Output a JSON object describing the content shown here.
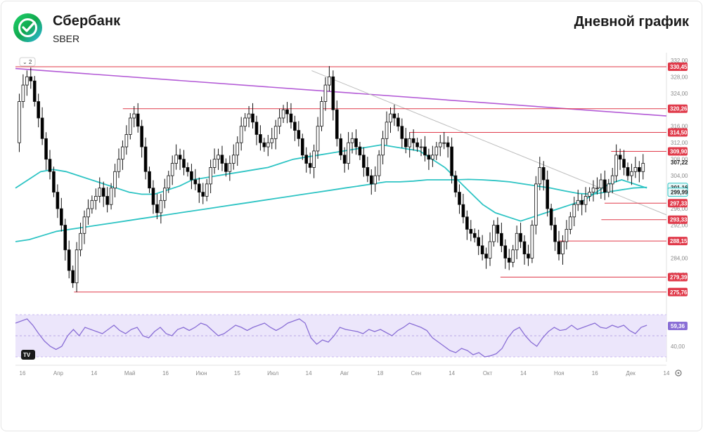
{
  "header": {
    "company_name": "Сбербанк",
    "ticker": "SBER",
    "chart_title": "Дневной график",
    "logo_icon": "sber-logo-icon"
  },
  "toolbar": {
    "collapse_label": "2",
    "tv_badge": "TV"
  },
  "colors": {
    "up": "#ffffff",
    "down": "#000000",
    "sma_short": "#2ec4c4",
    "sma_long": "#2ec4c4",
    "trend_purple": "#b35ad6",
    "trend_gray": "#bdbdbd",
    "level_red": "#e03a4a",
    "rsi_line": "#8a6fd6",
    "rsi_band": "#ece6fb",
    "price_tag_black": "#1a1a1a"
  },
  "chart_data": {
    "type": "candlestick",
    "y_axis": {
      "min": 273,
      "max": 333,
      "ticks": [
        "332,00",
        "328,00",
        "324,00",
        "316,00",
        "312,00",
        "308,00",
        "304,00",
        "296,00",
        "292,00",
        "284,00",
        "280,00"
      ]
    },
    "x_axis": {
      "labels": [
        "16",
        "Апр",
        "14",
        "Май",
        "16",
        "Июн",
        "15",
        "Июл",
        "14",
        "Авг",
        "18",
        "Сен",
        "14",
        "Окт",
        "14",
        "Ноя",
        "16",
        "Дек",
        "14"
      ]
    },
    "levels": [
      {
        "value": 330.45,
        "label": "330,45",
        "from": 0.0
      },
      {
        "value": 320.26,
        "label": "320,26",
        "from": 0.165
      },
      {
        "value": 314.5,
        "label": "314,50",
        "from": 0.605
      },
      {
        "value": 309.9,
        "label": "309,90",
        "from": 0.915
      },
      {
        "value": 297.33,
        "label": "297,33",
        "from": 0.905
      },
      {
        "value": 293.33,
        "label": "293,33",
        "from": 0.9
      },
      {
        "value": 288.15,
        "label": "288,15",
        "from": 0.835
      },
      {
        "value": 279.39,
        "label": "279,39",
        "from": 0.745
      },
      {
        "value": 275.76,
        "label": "275,76",
        "from": 0.09
      }
    ],
    "price_tags": [
      {
        "value": 307.22,
        "label": "307,22",
        "style": "plain"
      },
      {
        "value": 301.16,
        "label": "301,16",
        "style": "teal"
      },
      {
        "value": 299.99,
        "label": "299,99",
        "style": "teal"
      }
    ],
    "trendlines": [
      {
        "name": "purple",
        "from": [
          0.0,
          330.0
        ],
        "to": [
          1.0,
          318.5
        ]
      },
      {
        "name": "gray",
        "from": [
          0.455,
          329.5
        ],
        "to": [
          1.0,
          294.5
        ]
      }
    ],
    "closes": [
      312,
      322,
      326,
      328,
      327,
      322,
      318,
      313,
      308,
      305,
      300,
      296,
      292,
      286,
      281,
      278,
      286,
      290,
      294,
      296,
      298,
      299,
      301,
      299,
      297,
      301,
      305,
      308,
      311,
      314,
      318,
      319,
      316,
      311,
      305,
      301,
      297,
      295,
      298,
      301,
      304,
      307,
      309,
      308,
      306,
      305,
      303,
      302,
      300,
      299,
      302,
      306,
      308,
      309,
      307,
      305,
      307,
      309,
      312,
      316,
      318,
      319,
      317,
      314,
      312,
      311,
      312,
      313,
      316,
      318,
      320,
      319,
      317,
      315,
      313,
      309,
      307,
      306,
      310,
      316,
      322,
      326,
      328,
      320,
      313,
      309,
      307,
      312,
      313,
      311,
      309,
      306,
      304,
      302,
      304,
      309,
      313,
      317,
      319,
      318,
      316,
      313,
      311,
      313,
      312,
      311,
      311,
      309,
      308,
      309,
      311,
      312,
      312,
      311,
      304,
      300,
      297,
      294,
      291,
      290,
      289,
      287,
      285,
      284,
      288,
      292,
      290,
      287,
      284,
      283,
      286,
      290,
      288,
      285,
      284,
      292,
      302,
      306,
      303,
      296,
      292,
      288,
      285,
      288,
      291,
      294,
      297,
      298,
      297,
      299,
      300,
      301,
      301,
      303,
      300,
      302,
      304,
      309,
      308,
      306,
      304,
      305,
      306,
      305,
      307
    ],
    "sma_short": [
      301,
      303,
      305,
      305.5,
      305,
      304,
      303,
      302,
      301,
      300,
      299.5,
      299.5,
      300.5,
      301.5,
      303,
      303.5,
      304,
      304.5,
      305,
      305.5,
      306,
      307,
      308,
      308.5,
      309,
      309.5,
      310,
      310.5,
      311,
      311.5,
      311,
      310.5,
      310,
      308,
      306,
      303,
      300,
      297,
      295,
      294,
      293,
      294,
      295,
      296,
      297,
      298,
      300,
      302,
      303,
      302,
      301
    ],
    "sma_long": [
      288,
      288.5,
      289.5,
      290.5,
      291,
      291.5,
      292,
      292.5,
      293,
      293.5,
      294,
      294.5,
      295,
      295.5,
      296,
      296.5,
      297,
      297.5,
      298,
      298.5,
      299,
      299.5,
      300,
      300.5,
      301,
      301.5,
      302,
      302.5,
      302.5,
      302.7,
      303,
      303,
      303,
      303.1,
      303,
      302.8,
      302.5,
      302,
      301.5,
      301,
      300.3,
      299.7,
      299.5,
      300,
      300.5,
      301,
      301.2
    ],
    "rsi": {
      "current_label": "59,36",
      "current": 59.36,
      "tick_label": "40,00",
      "values": [
        62,
        64,
        66,
        60,
        52,
        45,
        40,
        37,
        40,
        50,
        56,
        50,
        58,
        56,
        54,
        52,
        56,
        60,
        55,
        52,
        56,
        58,
        50,
        48,
        54,
        58,
        52,
        50,
        56,
        58,
        55,
        58,
        62,
        60,
        55,
        50,
        52,
        56,
        60,
        58,
        55,
        58,
        60,
        62,
        58,
        55,
        58,
        62,
        64,
        66,
        62,
        48,
        42,
        46,
        44,
        50,
        58,
        56,
        55,
        54,
        52,
        56,
        54,
        56,
        53,
        50,
        55,
        58,
        62,
        60,
        58,
        55,
        48,
        44,
        40,
        36,
        34,
        38,
        36,
        32,
        34,
        30,
        31,
        33,
        38,
        48,
        55,
        58,
        50,
        44,
        40,
        48,
        54,
        58,
        55,
        56,
        60,
        56,
        58,
        60,
        62,
        58,
        57,
        60,
        58,
        60,
        55,
        52,
        58,
        60
      ]
    }
  }
}
